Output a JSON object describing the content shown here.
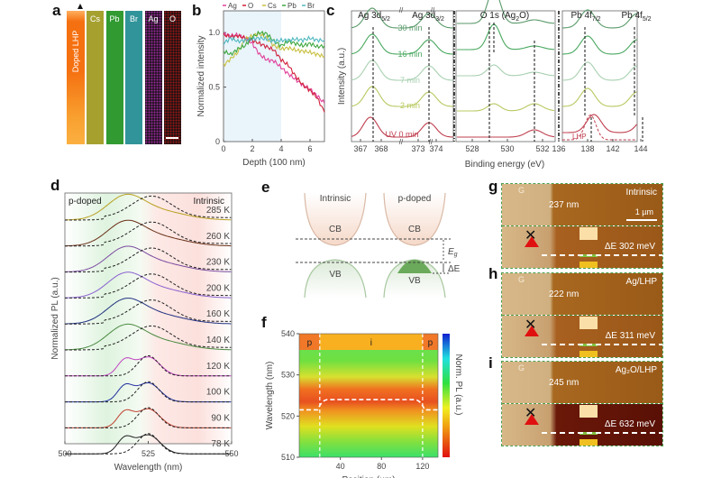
{
  "panels": {
    "a": {
      "letter": "a"
    },
    "b": {
      "letter": "b"
    },
    "c": {
      "letter": "c"
    },
    "d": {
      "letter": "d"
    },
    "e": {
      "letter": "e"
    },
    "f": {
      "letter": "f"
    },
    "g": {
      "letter": "g"
    },
    "h": {
      "letter": "h"
    },
    "i": {
      "letter": "i"
    }
  },
  "panel_a": {
    "sample_label": "Doped LHP",
    "maps": [
      {
        "label": "Cs",
        "color": "#d8d23a"
      },
      {
        "label": "Pb",
        "color": "#3cc83c"
      },
      {
        "label": "Br",
        "color": "#3cc0c8"
      },
      {
        "label": "Ag",
        "color": "#d030d0"
      },
      {
        "label": "O",
        "color": "#d01818"
      }
    ]
  },
  "panel_e": {
    "left_title": "Intrinsic",
    "right_title": "p-doped",
    "cb": "CB",
    "vb": "VB",
    "eg": "E",
    "eg_sub": "g",
    "de": "ΔE"
  },
  "afm": [
    {
      "letter": "g",
      "sample": "Intrinsic",
      "g_label": "G",
      "height": "237 nm",
      "scale": "1 µm",
      "delta_e": "ΔE 302 meV"
    },
    {
      "letter": "h",
      "sample": "Ag/LHP",
      "g_label": "G",
      "height": "222 nm",
      "scale": "",
      "delta_e": "ΔE 311 meV"
    },
    {
      "letter": "i",
      "sample": "Ag₂O/LHP",
      "g_label": "G",
      "height": "245 nm",
      "scale": "",
      "delta_e": "ΔE 632 meV"
    }
  ],
  "chart_data": [
    {
      "id": "b",
      "type": "line",
      "title": "",
      "xlabel": "Depth (100 nm)",
      "ylabel": "Normalized intensity",
      "xlim": [
        0,
        7
      ],
      "ylim": [
        0,
        1.2
      ],
      "xticks": [
        0,
        2,
        4,
        6
      ],
      "yticks": [
        0,
        0.5,
        1.0
      ],
      "ytick_labels": [
        "0",
        "0.5",
        "1.0"
      ],
      "legend": "top",
      "x": [
        0,
        0.5,
        1,
        1.5,
        2,
        2.5,
        3,
        3.5,
        4,
        4.5,
        5,
        5.5,
        6,
        6.5,
        7
      ],
      "series": [
        {
          "name": "Ag",
          "color": "#e0409a",
          "values": [
            0.99,
            0.97,
            0.98,
            0.95,
            0.9,
            0.8,
            0.75,
            0.74,
            0.68,
            0.62,
            0.57,
            0.52,
            0.48,
            0.42,
            0.35
          ]
        },
        {
          "name": "O",
          "color": "#d0203a",
          "values": [
            0.98,
            0.96,
            0.97,
            0.95,
            0.93,
            0.9,
            0.87,
            0.84,
            0.75,
            0.7,
            0.6,
            0.52,
            0.47,
            0.4,
            0.27
          ]
        },
        {
          "name": "Cs",
          "color": "#c8c040",
          "values": [
            0.7,
            0.76,
            0.82,
            0.94,
            0.97,
            0.99,
            0.95,
            0.88,
            0.85,
            0.86,
            0.84,
            0.83,
            0.82,
            0.8,
            0.78
          ]
        },
        {
          "name": "Pb",
          "color": "#40a840",
          "values": [
            0.83,
            0.8,
            0.85,
            0.88,
            0.96,
            1.0,
            0.99,
            0.92,
            0.88,
            0.92,
            0.9,
            0.88,
            0.9,
            0.87,
            0.88
          ]
        },
        {
          "name": "Br",
          "color": "#50b8c0",
          "values": [
            0.9,
            0.95,
            0.92,
            0.93,
            0.94,
            0.95,
            0.94,
            0.92,
            0.93,
            0.93,
            0.94,
            0.93,
            0.95,
            0.93,
            0.93
          ]
        }
      ]
    },
    {
      "id": "c",
      "type": "line",
      "xlabel": "Binding energy (eV)",
      "ylabel": "Intensity (a.u.)",
      "segments": [
        {
          "xlim": [
            366.5,
            369
          ],
          "xticks": [
            367,
            368
          ],
          "break_to": [
            372.5,
            374.5
          ],
          "xticks2": [
            373,
            374
          ],
          "peaks": [
            "Ag 3d5/2",
            "Ag 3d3/2"
          ]
        },
        {
          "xlim": [
            527,
            533
          ],
          "xticks": [
            528,
            530,
            532
          ],
          "peaks": [
            "O 1s (Ag2O)"
          ]
        },
        {
          "xlim": [
            136,
            144
          ],
          "xticks": [
            136,
            138,
            142,
            144
          ],
          "peaks": [
            "Pb 4f7/2",
            "Pb 4f5/2"
          ]
        }
      ],
      "peak_labels": [
        {
          "main": "Ag 3d",
          "sub": "5/2"
        },
        {
          "main": "Ag 3d",
          "sub": "3/2"
        },
        {
          "main": "O 1s (Ag",
          "sub": "2",
          "tail": "O)"
        },
        {
          "main": "Pb 4f",
          "sub": "7/2"
        },
        {
          "main": "Pb 4f",
          "sub": "5/2"
        }
      ],
      "series": [
        {
          "name": "30 min",
          "color": "#5a9a6a"
        },
        {
          "name": "16 min",
          "color": "#4aa860"
        },
        {
          "name": "7 min",
          "color": "#a8d0b0"
        },
        {
          "name": "2 min",
          "color": "#b8c860"
        },
        {
          "name": "UV 0 min",
          "color": "#c04050"
        }
      ],
      "reference": {
        "name": "LHP",
        "color": "#c04050",
        "style": "dashed"
      }
    },
    {
      "id": "d",
      "type": "line",
      "xlabel": "Wavelength (nm)",
      "ylabel": "Normalized PL (a.u.)",
      "xlim": [
        500,
        550
      ],
      "xticks": [
        500,
        525,
        550
      ],
      "region_labels": [
        "p-doped",
        "Intrinsic"
      ],
      "series": [
        {
          "name": "285 K",
          "color": "#b8a020"
        },
        {
          "name": "260 K",
          "color": "#6a3018"
        },
        {
          "name": "230 K",
          "color": "#7a4aa0"
        },
        {
          "name": "200 K",
          "color": "#8a60d0"
        },
        {
          "name": "160 K",
          "color": "#203080"
        },
        {
          "name": "140 K",
          "color": "#4a8a40"
        },
        {
          "name": "120 K",
          "color": "#c040c0"
        },
        {
          "name": "100 K",
          "color": "#2030a0"
        },
        {
          "name": "90 K",
          "color": "#c04030"
        },
        {
          "name": "78 K",
          "color": "#202020"
        }
      ]
    },
    {
      "id": "f",
      "type": "heatmap",
      "xlabel": "Position (µm)",
      "ylabel": "Wavelength (nm)",
      "colorbar_label": "Norm. PL (a.u.)",
      "xlim": [
        0,
        135
      ],
      "ylim": [
        510,
        540
      ],
      "xticks": [
        40,
        80,
        120
      ],
      "yticks": [
        510,
        520,
        530,
        540
      ],
      "regions": [
        {
          "label": "p",
          "from": 0,
          "to": 20
        },
        {
          "label": "i",
          "from": 20,
          "to": 120
        },
        {
          "label": "p",
          "from": 120,
          "to": 135
        }
      ],
      "peak_trace": {
        "p_level": 521.5,
        "i_level": 524
      }
    }
  ]
}
